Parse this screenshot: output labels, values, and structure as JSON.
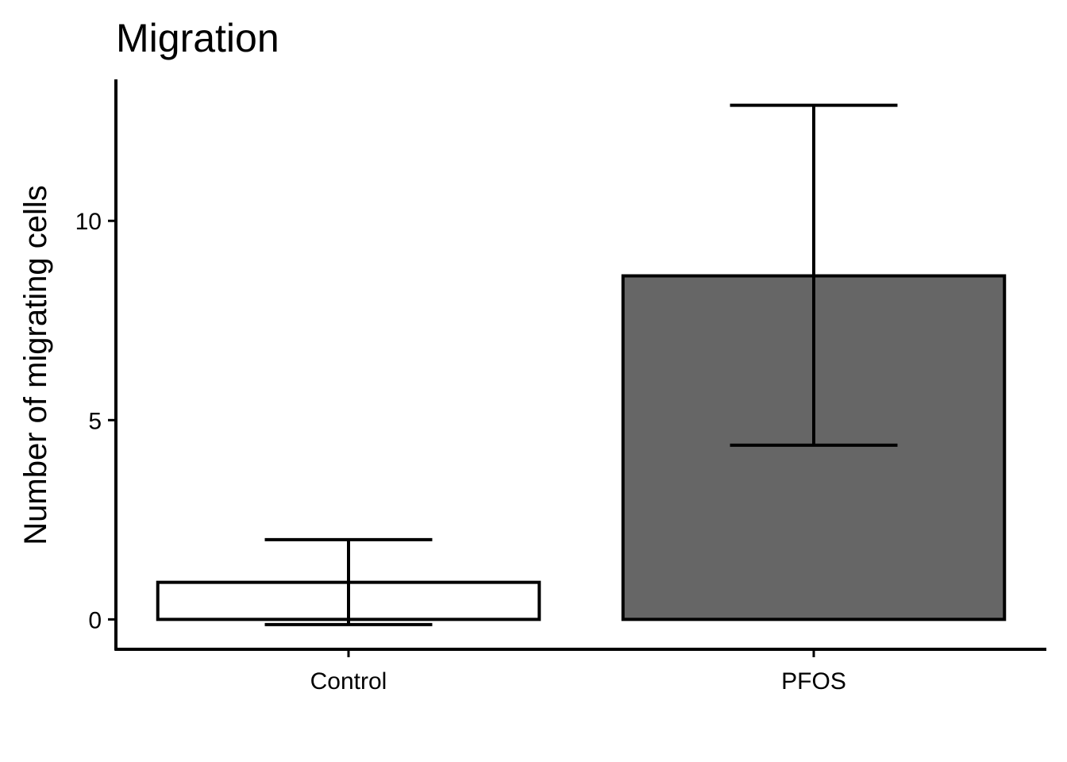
{
  "chart_data": {
    "type": "bar",
    "title": "Migration",
    "xlabel": "",
    "ylabel": "Number of migrating cells",
    "categories": [
      "Control",
      "PFOS"
    ],
    "values": [
      0.93,
      8.62
    ],
    "error_low": [
      -0.13,
      4.37
    ],
    "error_high": [
      2.0,
      12.9
    ],
    "fill_colors": [
      "#ffffff",
      "#666666"
    ],
    "edge_color": "#000000",
    "ylim": [
      -0.75,
      13.55
    ],
    "yticks": [
      0,
      5,
      10
    ],
    "ytick_labels": [
      "0",
      "5",
      "10"
    ],
    "grid": false,
    "legend": "none"
  }
}
